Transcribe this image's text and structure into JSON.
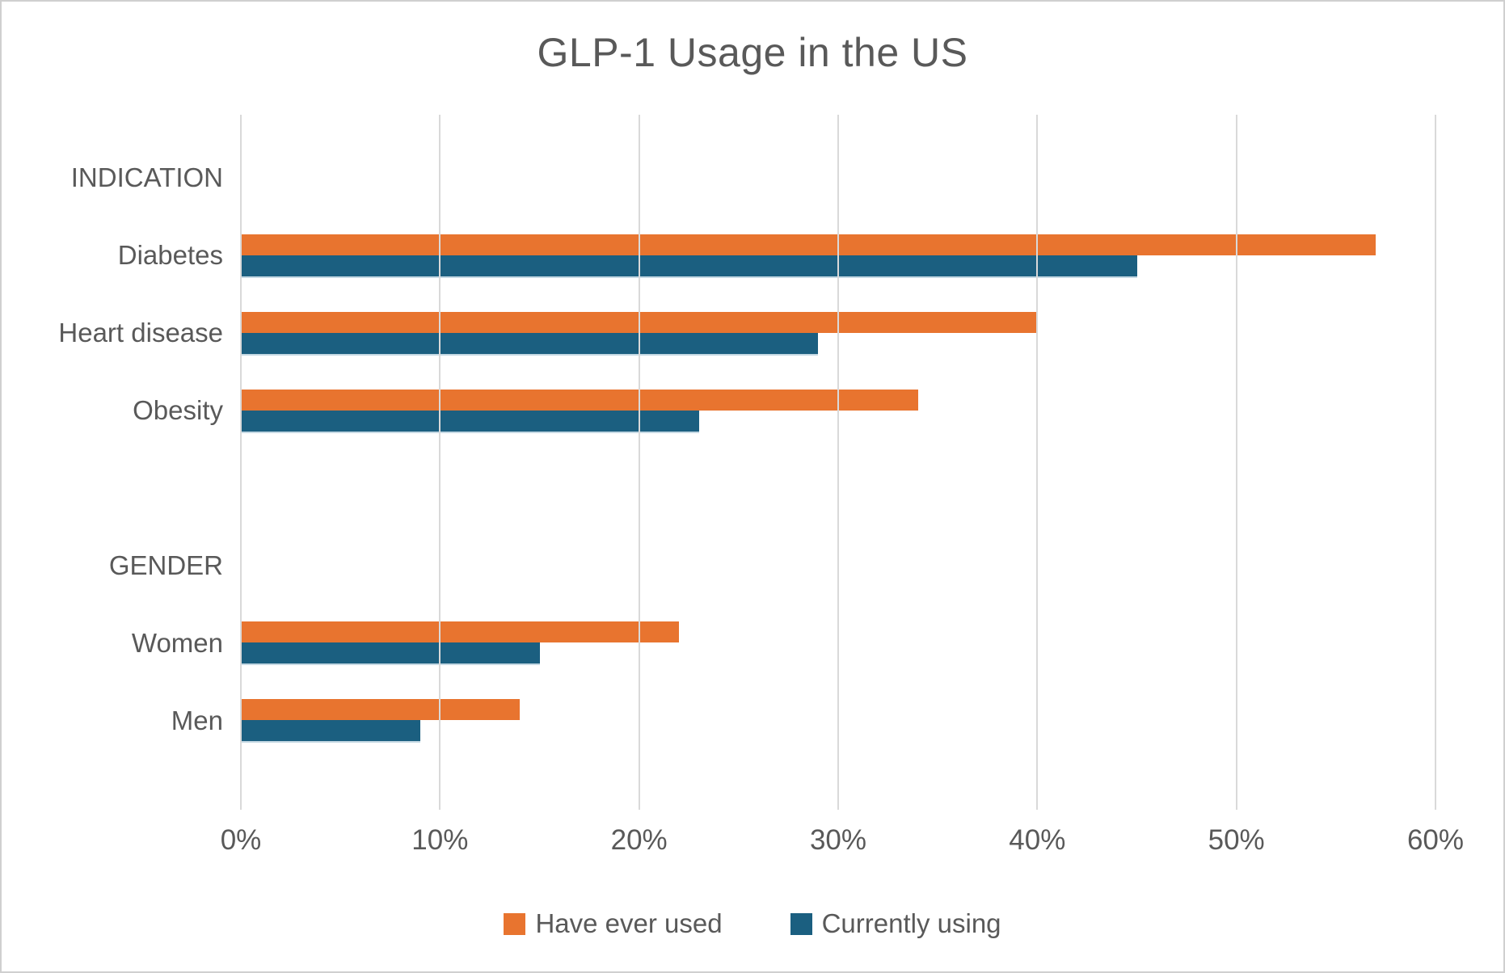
{
  "title": "GLP-1 Usage in the US",
  "colors": {
    "have_ever_used": "#e8742f",
    "currently_using": "#1b5f80",
    "text": "#595959",
    "gridline": "#d9d9d9"
  },
  "legend": [
    {
      "label": "Have ever used",
      "color": "#e8742f"
    },
    {
      "label": "Currently using",
      "color": "#1b5f80"
    }
  ],
  "chart_data": {
    "type": "bar",
    "orientation": "horizontal",
    "title": "GLP-1 Usage in the US",
    "categories": [
      "INDICATION",
      "Diabetes",
      "Heart disease",
      "Obesity",
      "",
      "GENDER",
      "Women",
      "Men"
    ],
    "group_header_categories": [
      "INDICATION",
      "GENDER"
    ],
    "series": [
      {
        "name": "Have ever used",
        "color": "#e8742f",
        "values": [
          null,
          57,
          40,
          34,
          null,
          null,
          22,
          14
        ]
      },
      {
        "name": "Currently using",
        "color": "#1b5f80",
        "values": [
          null,
          45,
          29,
          23,
          null,
          null,
          15,
          9
        ]
      }
    ],
    "xlim": [
      0,
      60
    ],
    "x_ticks": [
      "0%",
      "10%",
      "20%",
      "30%",
      "40%",
      "50%",
      "60%"
    ],
    "x_tick_values": [
      0,
      10,
      20,
      30,
      40,
      50,
      60
    ],
    "grid": true,
    "legend_position": "bottom"
  }
}
